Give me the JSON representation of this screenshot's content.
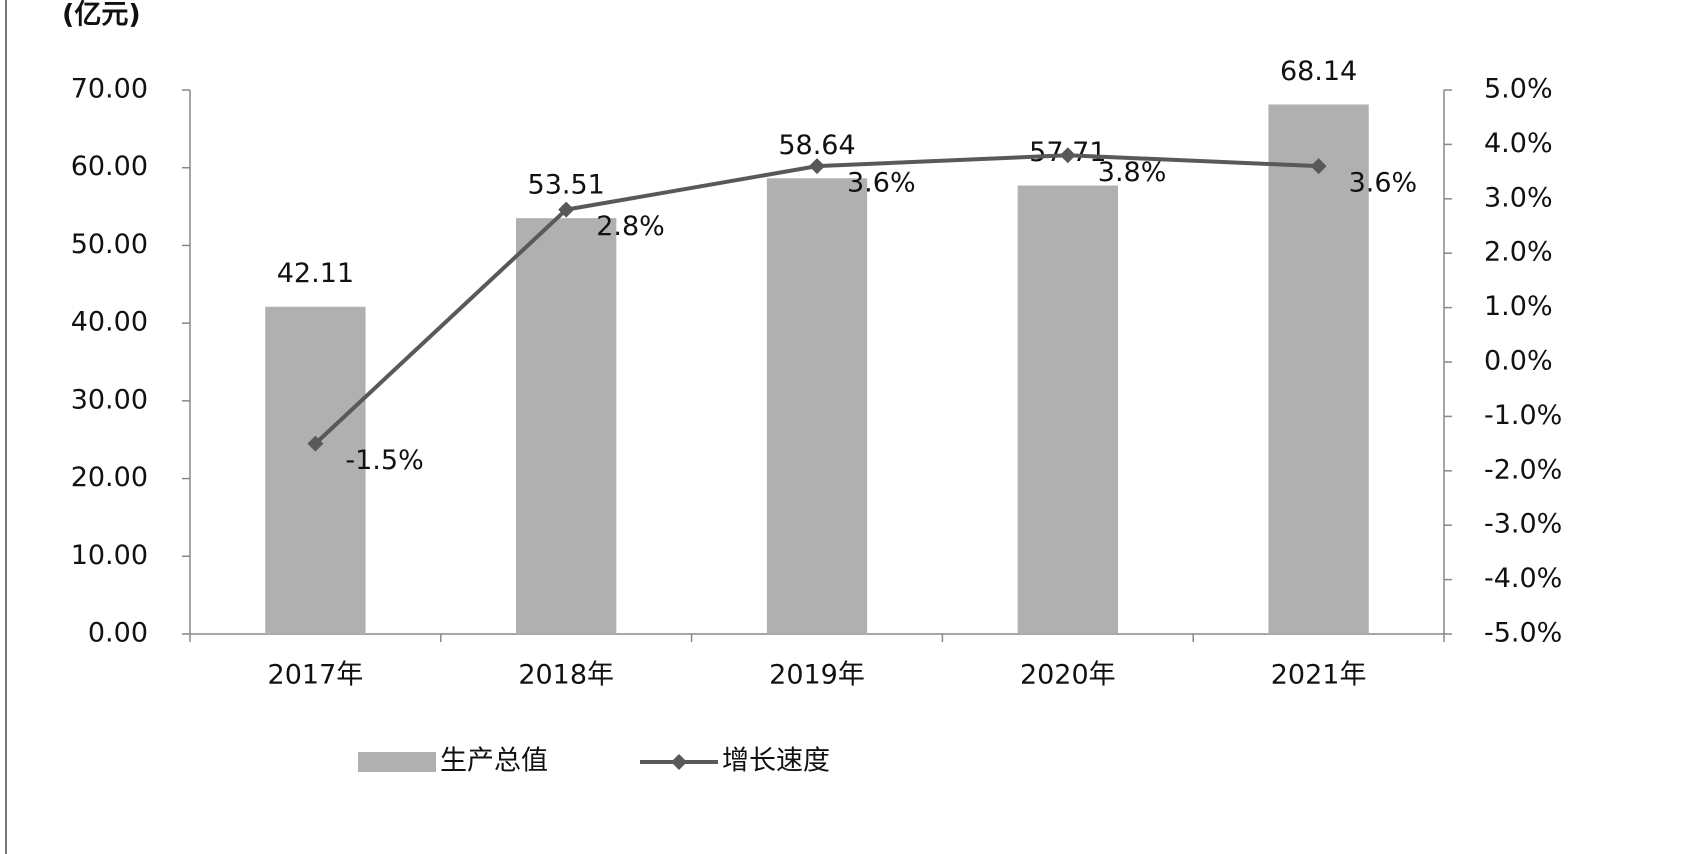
{
  "chart_data": {
    "type": "bar",
    "y_label": "(亿元)",
    "categories": [
      "2017年",
      "2018年",
      "2019年",
      "2020年",
      "2021年"
    ],
    "series": [
      {
        "name": "生产总值",
        "type": "bar",
        "color": "#b0b0b0",
        "values": [
          42.11,
          53.51,
          58.64,
          57.71,
          68.14
        ]
      },
      {
        "name": "增长速度",
        "type": "line",
        "axis": "y2",
        "color": "#595959",
        "values": [
          -1.5,
          2.8,
          3.6,
          3.8,
          3.6
        ],
        "value_labels": [
          "-1.5%",
          "2.8%",
          "3.6%",
          "3.8%",
          "3.6%"
        ]
      }
    ],
    "ylim": [
      0,
      70
    ],
    "yticks": [
      {
        "value": 0,
        "label": "0.00"
      },
      {
        "value": 10,
        "label": "10.00"
      },
      {
        "value": 20,
        "label": "20.00"
      },
      {
        "value": 30,
        "label": "30.00"
      },
      {
        "value": 40,
        "label": "40.00"
      },
      {
        "value": 50,
        "label": "50.00"
      },
      {
        "value": 60,
        "label": "60.00"
      },
      {
        "value": 70,
        "label": "70.00"
      }
    ],
    "y2lim": [
      -5,
      5
    ],
    "y2ticks": [
      {
        "value": -5,
        "label": "-5.0%"
      },
      {
        "value": -4,
        "label": "-4.0%"
      },
      {
        "value": -3,
        "label": "-3.0%"
      },
      {
        "value": -2,
        "label": "-2.0%"
      },
      {
        "value": -1,
        "label": "-1.0%"
      },
      {
        "value": 0,
        "label": "0.0%"
      },
      {
        "value": 1,
        "label": "1.0%"
      },
      {
        "value": 2,
        "label": "2.0%"
      },
      {
        "value": 3,
        "label": "3.0%"
      },
      {
        "value": 4,
        "label": "4.0%"
      },
      {
        "value": 5,
        "label": "5.0%"
      }
    ],
    "grid": false,
    "legend": "bottom"
  }
}
